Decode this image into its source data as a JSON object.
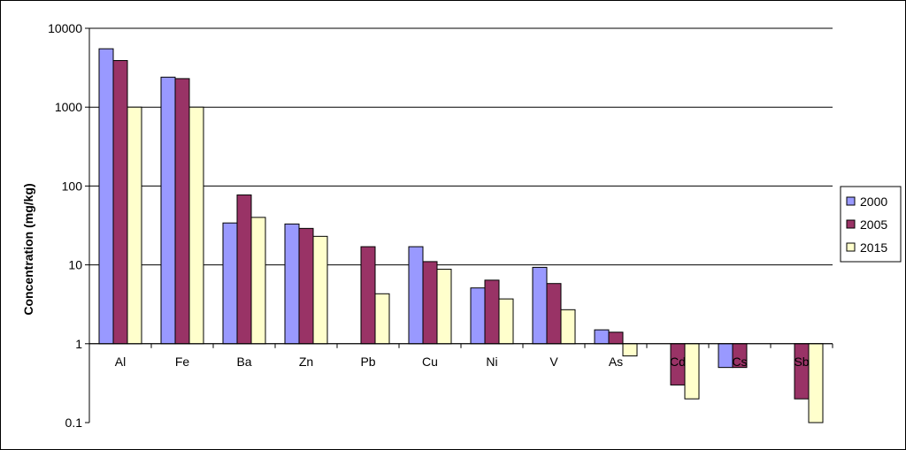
{
  "chart_data": {
    "type": "bar",
    "title": "",
    "xlabel": "",
    "ylabel": "Concentration (mg/kg)",
    "yscale": "log",
    "ylim": [
      0.1,
      10000
    ],
    "ytick_labels": [
      "10000",
      "1000",
      "100",
      "10",
      "1",
      "0.1"
    ],
    "ytick_values": [
      10000,
      1000,
      100,
      10,
      1,
      0.1
    ],
    "baseline": 1,
    "grid": "horizontal",
    "legend_position": "right",
    "categories": [
      "Al",
      "Fe",
      "Ba",
      "Zn",
      "Pb",
      "Cu",
      "Ni",
      "V",
      "As",
      "Cd",
      "Cs",
      "Sb"
    ],
    "series": [
      {
        "name": "2000",
        "color": "#9999ff",
        "values": [
          5500,
          2400,
          34,
          33,
          null,
          17,
          5.1,
          9.3,
          1.5,
          null,
          0.5,
          null
        ]
      },
      {
        "name": "2005",
        "color": "#993366",
        "values": [
          3900,
          2300,
          77,
          29,
          17,
          11,
          6.4,
          5.8,
          1.4,
          0.3,
          0.5,
          0.2
        ]
      },
      {
        "name": "2015",
        "color": "#ffffcc",
        "values": [
          1000,
          1000,
          40,
          23,
          4.3,
          8.8,
          3.7,
          2.7,
          0.7,
          0.2,
          null,
          0.1
        ]
      }
    ]
  }
}
